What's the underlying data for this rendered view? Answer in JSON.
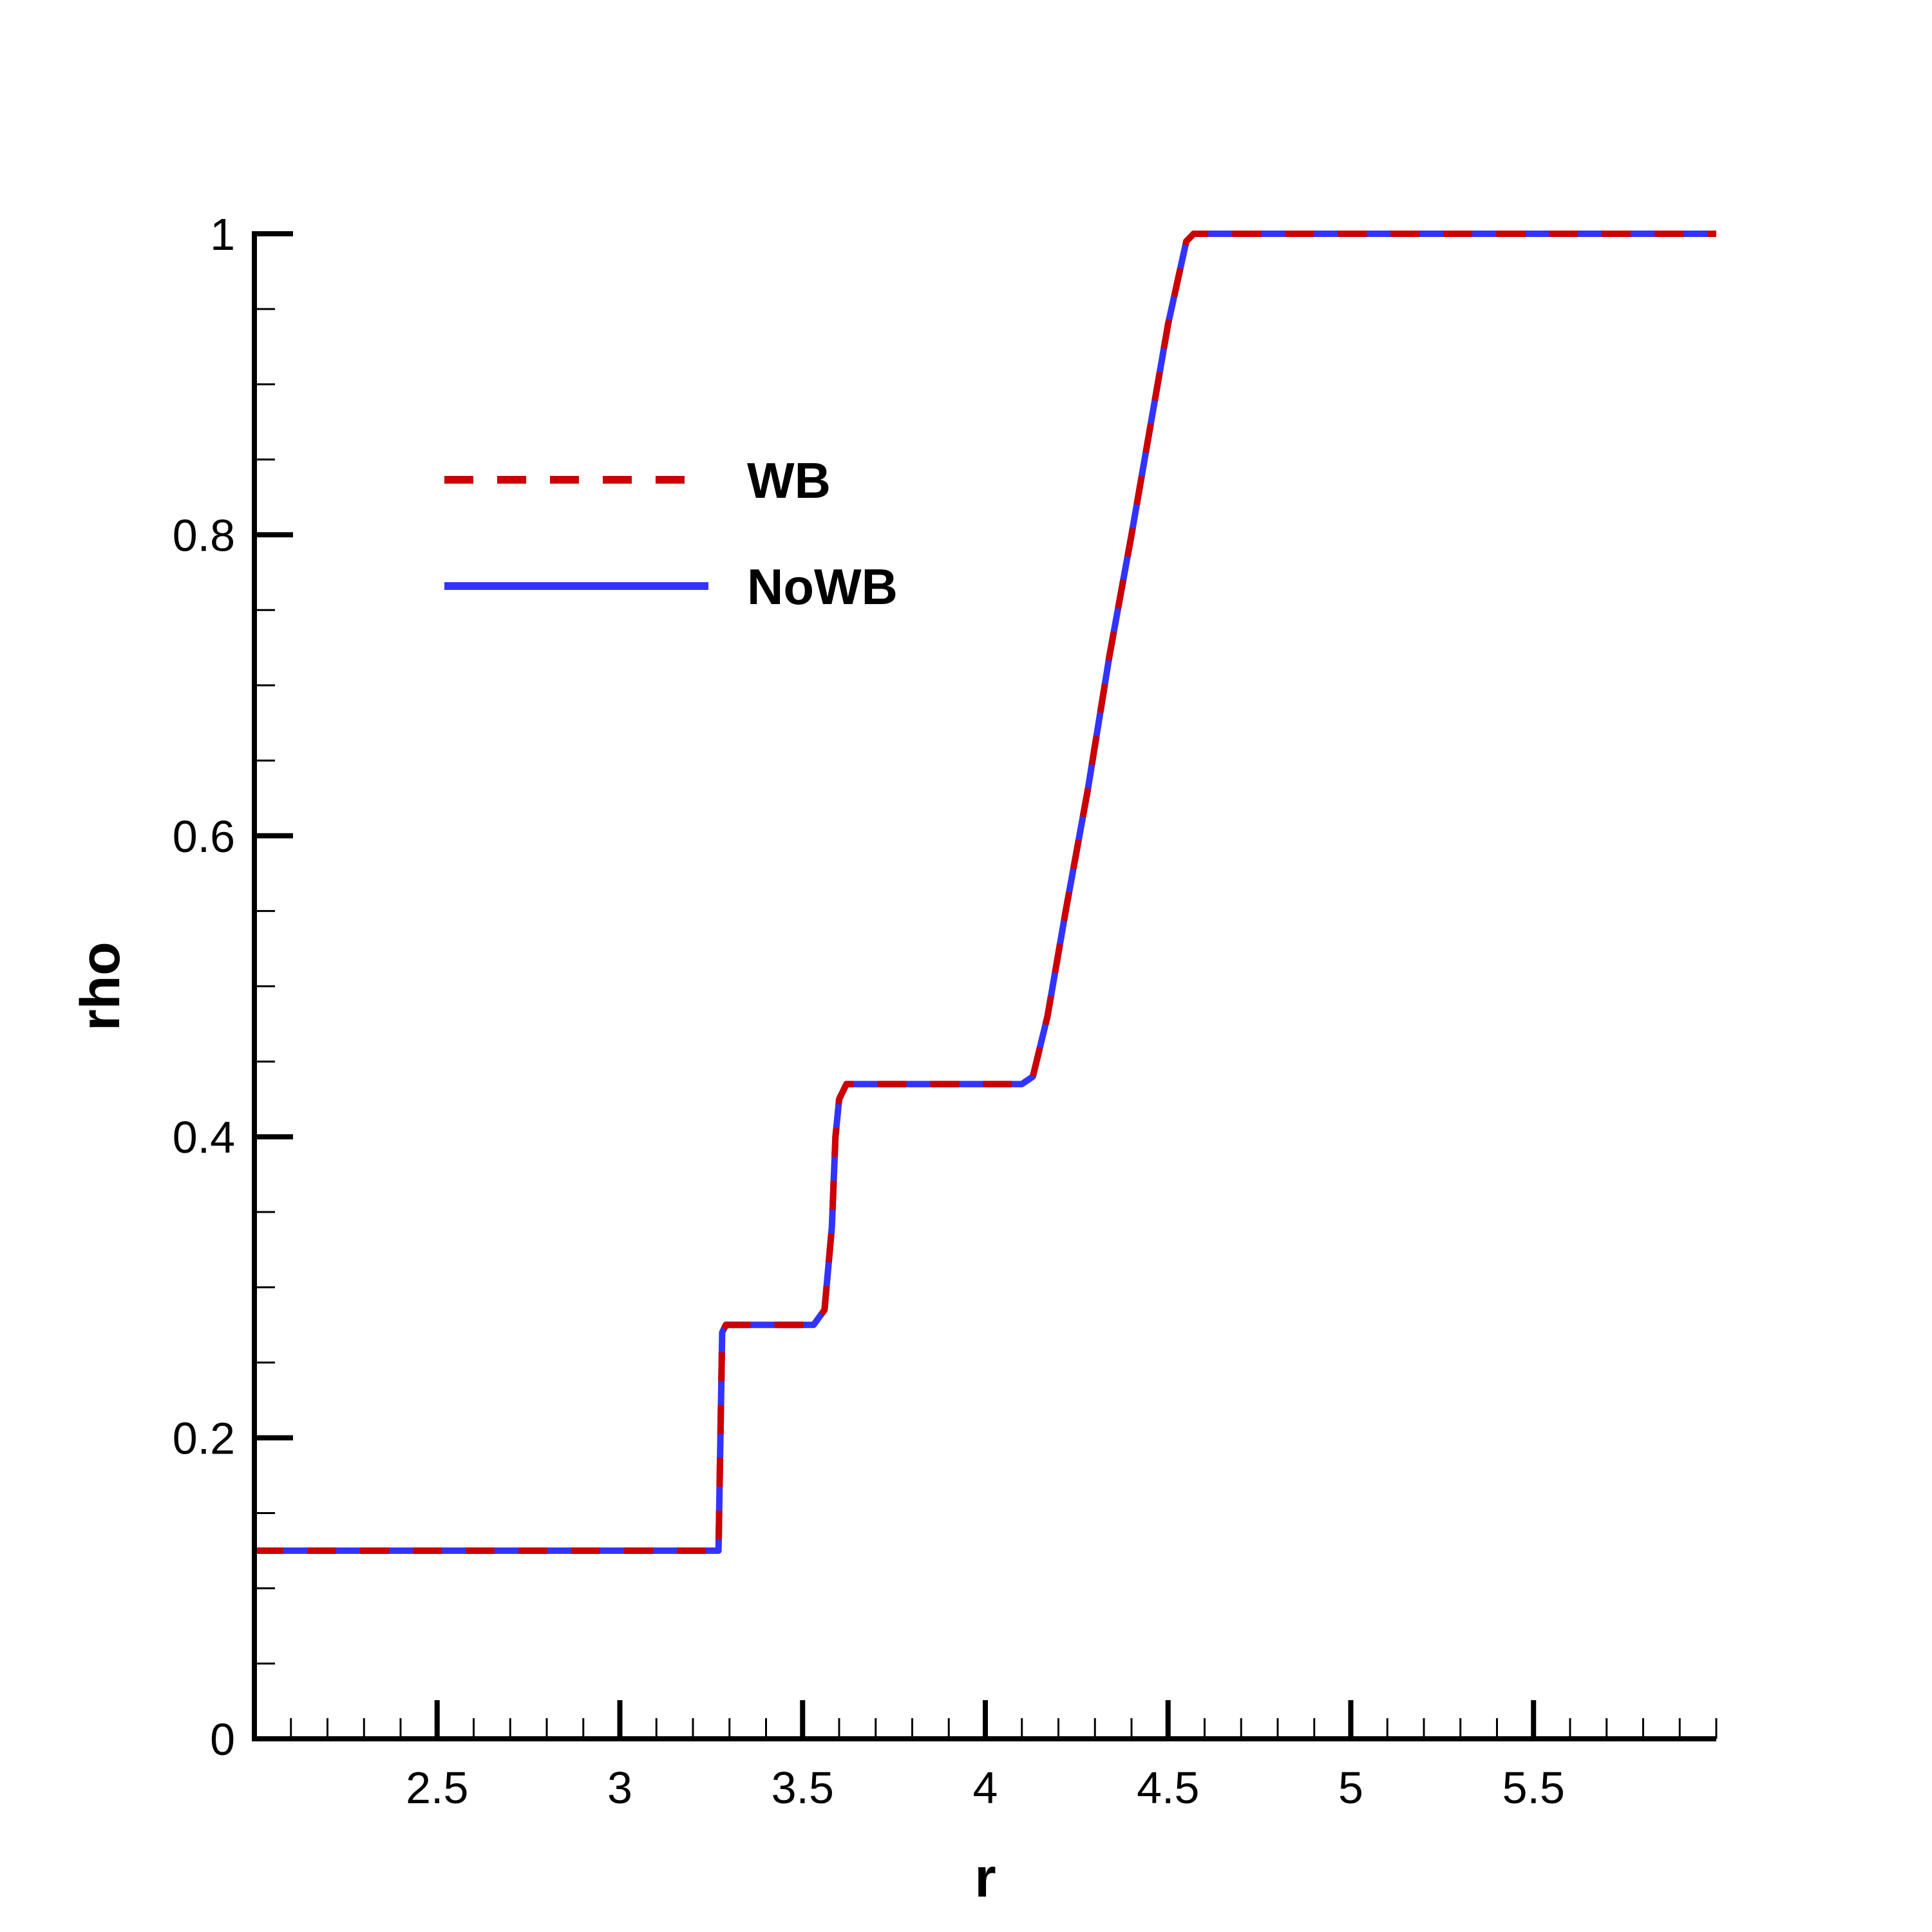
{
  "chart_data": {
    "type": "line",
    "xlabel": "r",
    "ylabel": "rho",
    "xlim": [
      2.0,
      6.0
    ],
    "ylim": [
      0,
      1
    ],
    "x_ticks": [
      2.5,
      3,
      3.5,
      4,
      4.5,
      5,
      5.5
    ],
    "x_tick_labels": [
      "2.5",
      "3",
      "3.5",
      "4",
      "4.5",
      "5",
      "5.5"
    ],
    "y_ticks": [
      0,
      0.2,
      0.4,
      0.6,
      0.8,
      1
    ],
    "y_tick_labels": [
      "0",
      "0.2",
      "0.4",
      "0.6",
      "0.8",
      "1"
    ],
    "grid": false,
    "legend_position": "top-left",
    "series": [
      {
        "name": "WB",
        "color": "#cc0000",
        "style": "dashed",
        "x": [
          2.0,
          3.27,
          3.28,
          3.29,
          3.53,
          3.56,
          3.58,
          3.59,
          3.6,
          3.62,
          4.1,
          4.13,
          4.17,
          4.22,
          4.28,
          4.34,
          4.4,
          4.45,
          4.5,
          4.55,
          4.57,
          6.0
        ],
        "y": [
          0.125,
          0.125,
          0.27,
          0.275,
          0.275,
          0.285,
          0.34,
          0.4,
          0.425,
          0.435,
          0.435,
          0.44,
          0.48,
          0.55,
          0.63,
          0.72,
          0.8,
          0.87,
          0.94,
          0.995,
          1.0,
          1.0
        ]
      },
      {
        "name": "NoWB",
        "color": "#3333ff",
        "style": "solid",
        "x": [
          2.0,
          3.27,
          3.28,
          3.29,
          3.53,
          3.56,
          3.58,
          3.59,
          3.6,
          3.62,
          4.1,
          4.13,
          4.17,
          4.22,
          4.28,
          4.34,
          4.4,
          4.45,
          4.5,
          4.55,
          4.57,
          6.0
        ],
        "y": [
          0.125,
          0.125,
          0.27,
          0.275,
          0.275,
          0.285,
          0.34,
          0.4,
          0.425,
          0.435,
          0.435,
          0.44,
          0.48,
          0.55,
          0.63,
          0.72,
          0.8,
          0.87,
          0.94,
          0.995,
          1.0,
          1.0
        ]
      }
    ]
  }
}
